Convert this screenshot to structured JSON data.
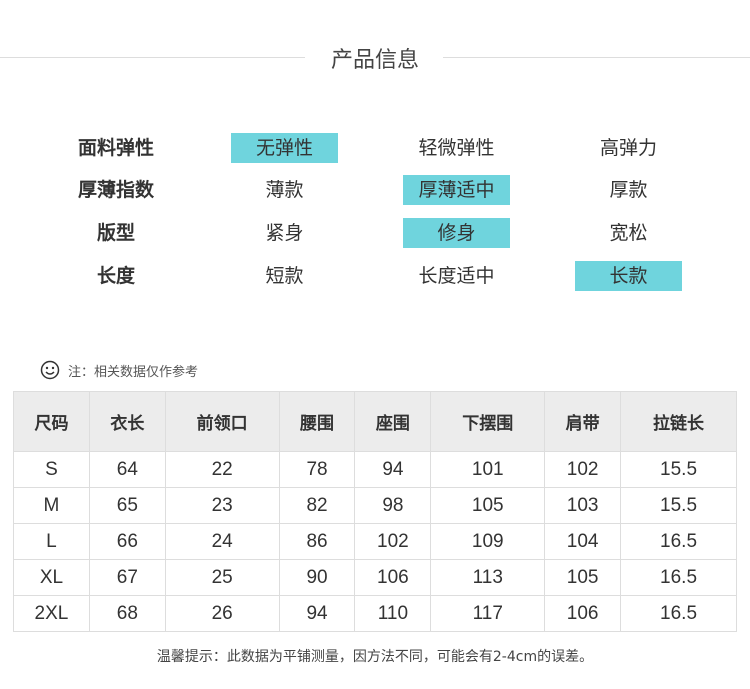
{
  "title": "产品信息",
  "attributes": [
    {
      "label": "面料弹性",
      "options": [
        "无弹性",
        "轻微弹性",
        "高弹力"
      ],
      "selected": 0
    },
    {
      "label": "厚薄指数",
      "options": [
        "薄款",
        "厚薄适中",
        "厚款"
      ],
      "selected": 1
    },
    {
      "label": "版型",
      "options": [
        "紧身",
        "修身",
        "宽松"
      ],
      "selected": 1
    },
    {
      "label": "长度",
      "options": [
        "短款",
        "长度适中",
        "长款"
      ],
      "selected": 2
    }
  ],
  "highlight_color": "#6fd4dd",
  "note": "注：相关数据仅作参考",
  "note_icon": "smiley-icon",
  "size_table": {
    "headers": [
      "尺码",
      "衣长",
      "前领口",
      "腰围",
      "座围",
      "下摆围",
      "肩带",
      "拉链长"
    ],
    "rows": [
      [
        "S",
        "64",
        "22",
        "78",
        "94",
        "101",
        "102",
        "15.5"
      ],
      [
        "M",
        "65",
        "23",
        "82",
        "98",
        "105",
        "103",
        "15.5"
      ],
      [
        "L",
        "66",
        "24",
        "86",
        "102",
        "109",
        "104",
        "16.5"
      ],
      [
        "XL",
        "67",
        "25",
        "90",
        "106",
        "113",
        "105",
        "16.5"
      ],
      [
        "2XL",
        "68",
        "26",
        "94",
        "110",
        "117",
        "106",
        "16.5"
      ]
    ]
  },
  "tip": "温馨提示：此数据为平铺测量，因方法不同，可能会有2-4cm的误差。"
}
